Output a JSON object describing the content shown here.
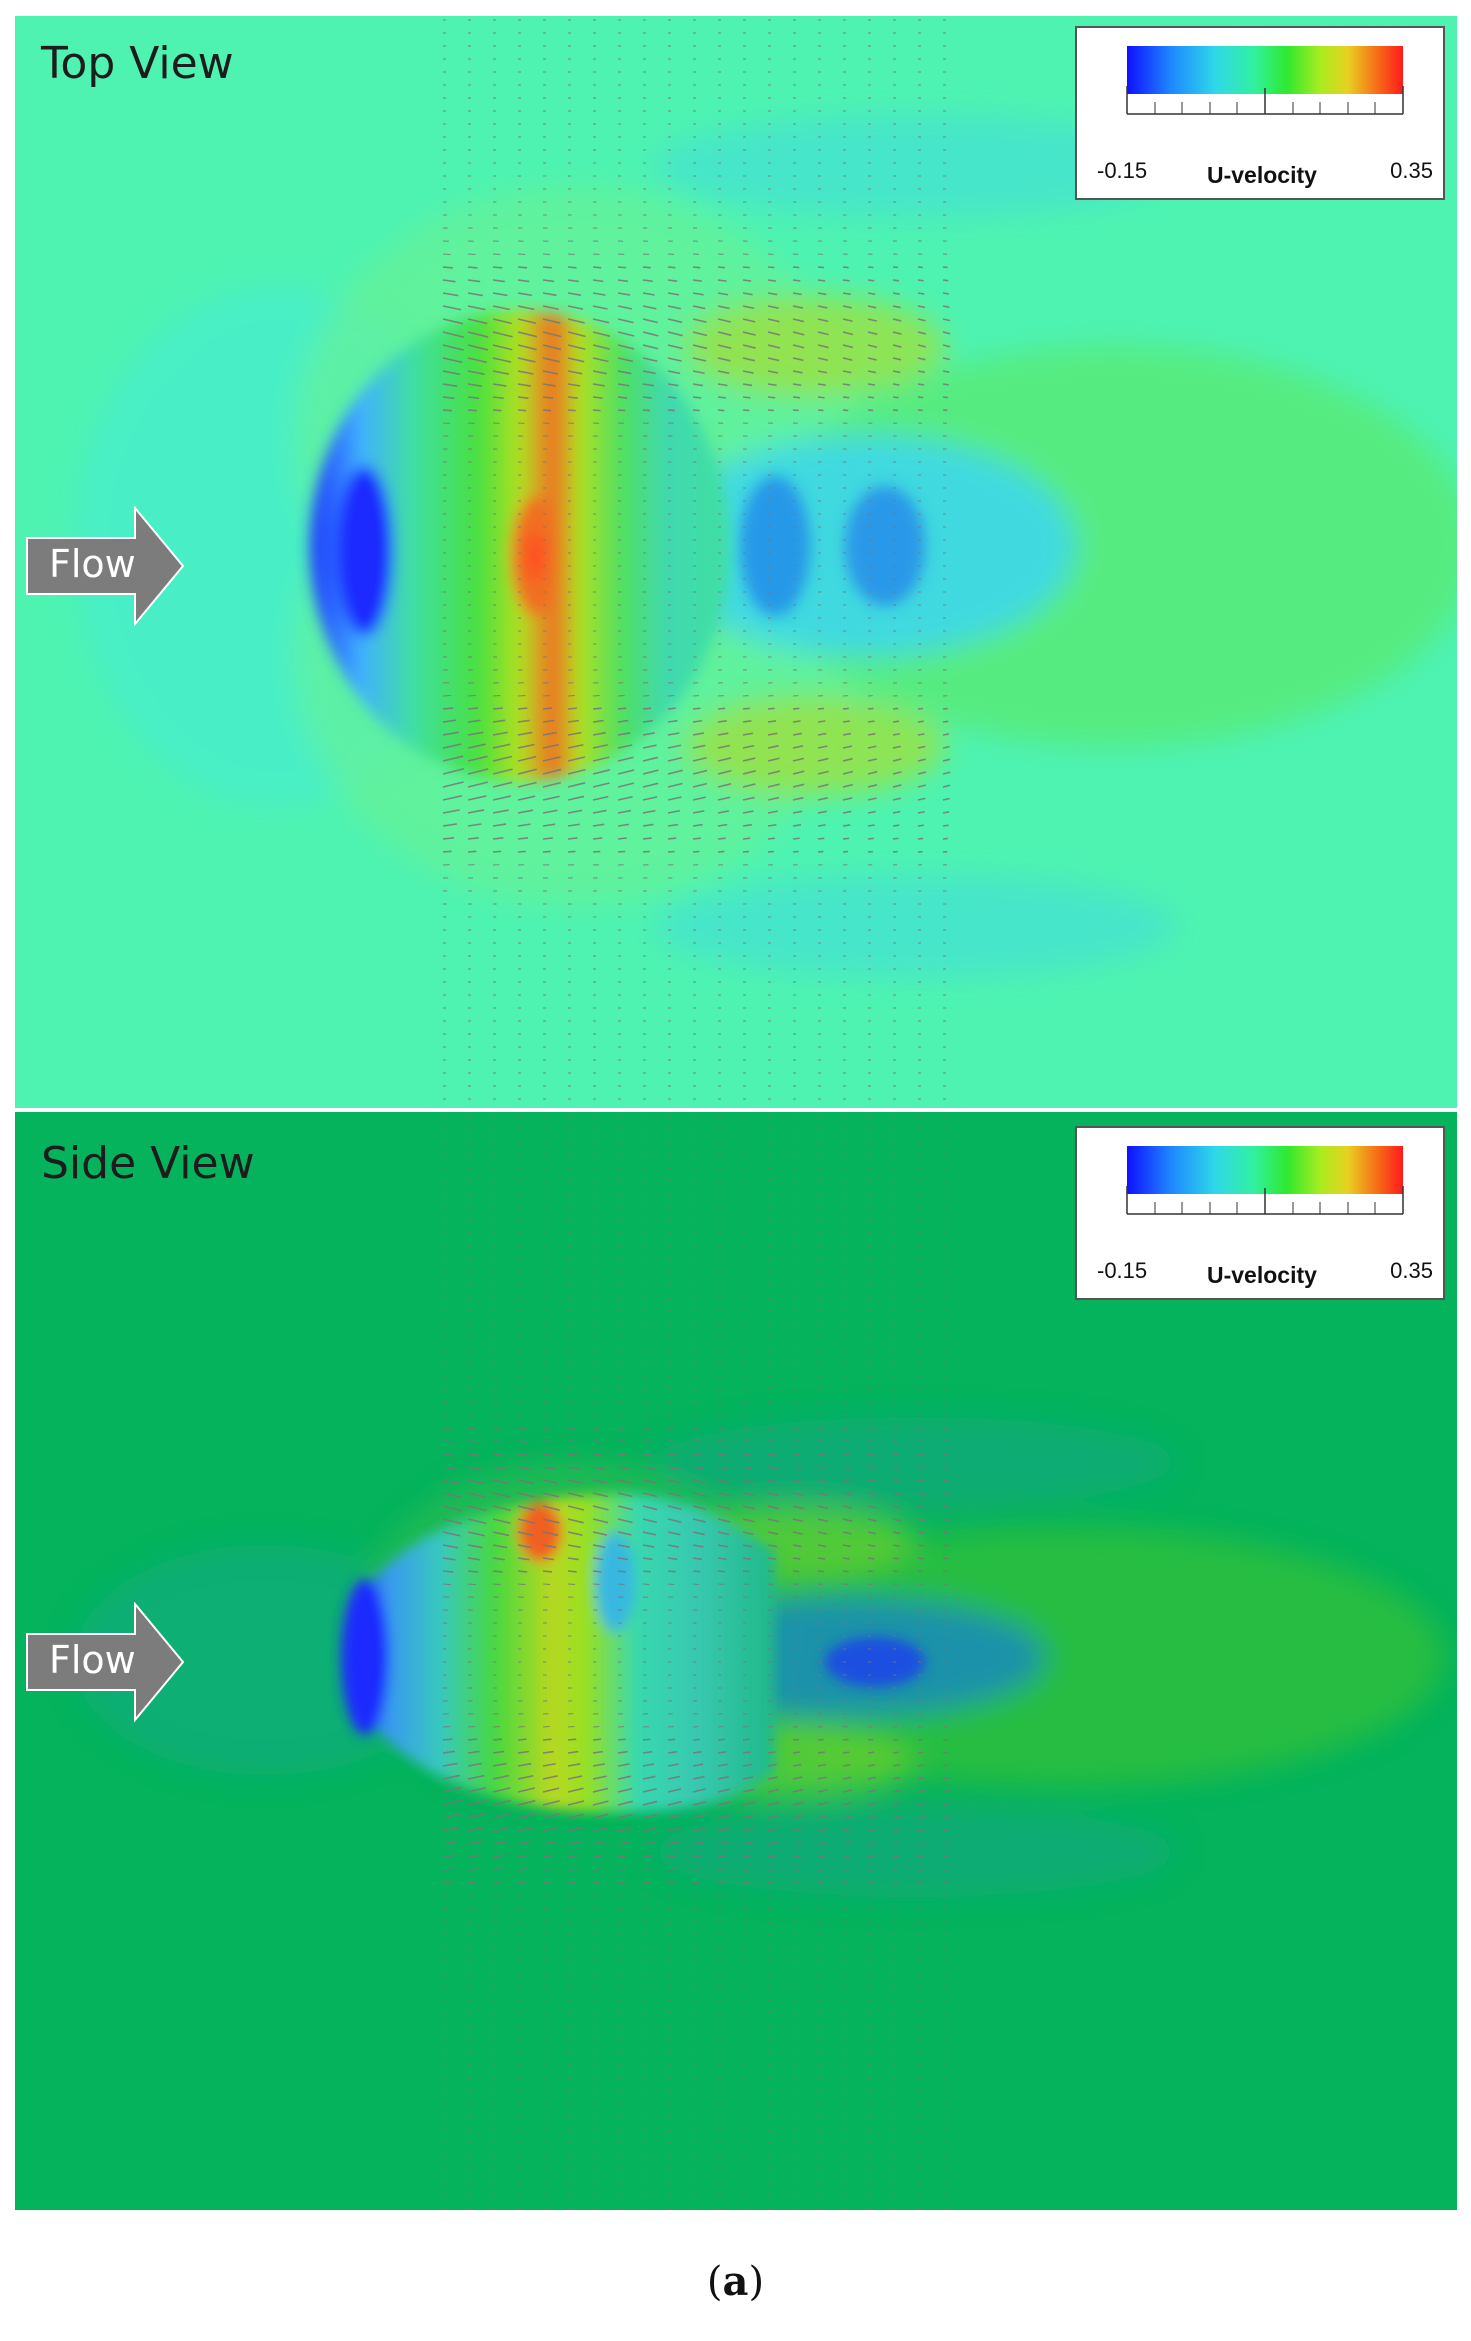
{
  "figure": {
    "caption_open": "(",
    "caption_letter": "a",
    "caption_close": ")"
  },
  "panels": [
    {
      "title": "Top View",
      "flow_label": "Flow",
      "background": "#4ef3b2",
      "legend": {
        "min": "-0.15",
        "max": "0.35",
        "label": "U-velocity"
      }
    },
    {
      "title": "Side View",
      "flow_label": "Flow",
      "background": "#04b35c",
      "legend": {
        "min": "-0.15",
        "max": "0.35",
        "label": "U-velocity"
      }
    }
  ],
  "colorbar": {
    "stops": [
      "#1010ff",
      "#1e88ff",
      "#2fd8e8",
      "#31f0a0",
      "#30e830",
      "#a8ec20",
      "#e8d020",
      "#f86018",
      "#ff1a1a"
    ]
  },
  "arrow_color": "#777777"
}
